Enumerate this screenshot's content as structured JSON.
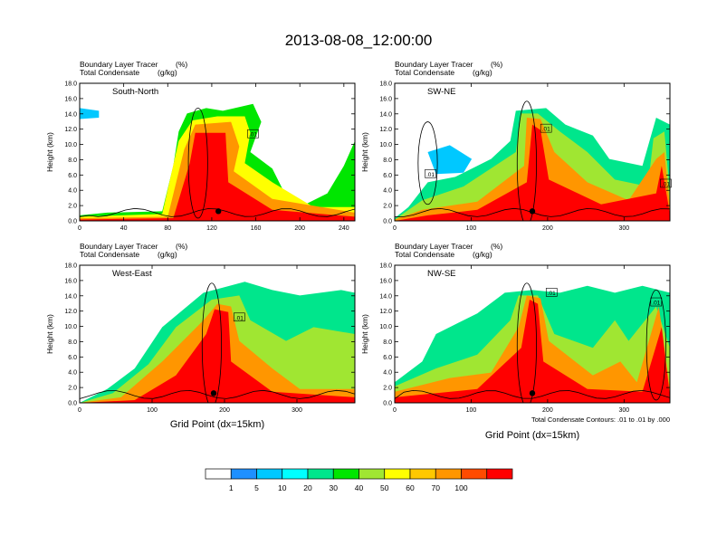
{
  "figure": {
    "title": "2013-08-08_12:00:00",
    "xlabel": "Grid Point (dx=15km)",
    "footnote": "Total Condensate Contours: .01 to .01 by .000"
  },
  "chart_data": [
    {
      "type": "heatmap",
      "panel_label": "South-North",
      "left_title_1": "Boundary Layer Tracer",
      "right_title_1": "(%)",
      "left_title_2": "Total Condensate",
      "right_title_2": "(g/kg)",
      "ylabel": "Height (km)",
      "xlim": [
        0,
        250
      ],
      "ylim": [
        0,
        18
      ],
      "xticks": [
        0,
        40,
        80,
        120,
        160,
        200,
        240
      ],
      "yticks": [
        "0.0",
        "2.0",
        "4.0",
        "6.0",
        "8.0",
        "10.0",
        "12.0",
        "14.0",
        "16.0",
        "18.0"
      ],
      "contour_labels": [
        ".01"
      ],
      "terrain_marker_x": 126
    },
    {
      "type": "heatmap",
      "panel_label": "SW-NE",
      "left_title_1": "Boundary Layer Tracer",
      "right_title_1": "(%)",
      "left_title_2": "Total Condensate",
      "right_title_2": "(g/kg)",
      "ylabel": "Height (km)",
      "xlim": [
        0,
        360
      ],
      "ylim": [
        0,
        18
      ],
      "xticks": [
        0,
        100,
        200,
        300
      ],
      "yticks": [
        "0.0",
        "2.0",
        "4.0",
        "6.0",
        "8.0",
        "10.0",
        "12.0",
        "14.0",
        "16.0",
        "18.0"
      ],
      "contour_labels": [
        ".01",
        ".01",
        ".01"
      ],
      "terrain_marker_x": 180
    },
    {
      "type": "heatmap",
      "panel_label": "West-East",
      "left_title_1": "Boundary Layer Tracer",
      "right_title_1": "(%)",
      "left_title_2": "Total Condensate",
      "right_title_2": "(g/kg)",
      "ylabel": "Height (km)",
      "xlim": [
        0,
        380
      ],
      "ylim": [
        0,
        18
      ],
      "xticks": [
        0,
        100,
        200,
        300
      ],
      "yticks": [
        "0.0",
        "2.0",
        "4.0",
        "6.0",
        "8.0",
        "10.0",
        "12.0",
        "14.0",
        "16.0",
        "18.0"
      ],
      "contour_labels": [
        ".01"
      ],
      "terrain_marker_x": 185
    },
    {
      "type": "heatmap",
      "panel_label": "NW-SE",
      "left_title_1": "Boundary Layer Tracer",
      "right_title_1": "(%)",
      "left_title_2": "Total Condensate",
      "right_title_2": "(g/kg)",
      "ylabel": "Height (km)",
      "xlim": [
        0,
        360
      ],
      "ylim": [
        0,
        18
      ],
      "xticks": [
        0,
        100,
        200,
        300
      ],
      "yticks": [
        "0.0",
        "2.0",
        "4.0",
        "6.0",
        "8.0",
        "10.0",
        "12.0",
        "14.0",
        "16.0",
        "18.0"
      ],
      "contour_labels": [
        ".01",
        ".01"
      ],
      "terrain_marker_x": 180
    }
  ],
  "colorbar": {
    "labels": [
      "1",
      "5",
      "10",
      "20",
      "30",
      "40",
      "50",
      "60",
      "70",
      "100"
    ],
    "colors": [
      "#ffffff",
      "#1e90ff",
      "#00c8ff",
      "#00ffff",
      "#00e68c",
      "#00e600",
      "#a0e632",
      "#ffff00",
      "#ffc800",
      "#ff9600",
      "#ff4b00",
      "#ff0000"
    ]
  }
}
